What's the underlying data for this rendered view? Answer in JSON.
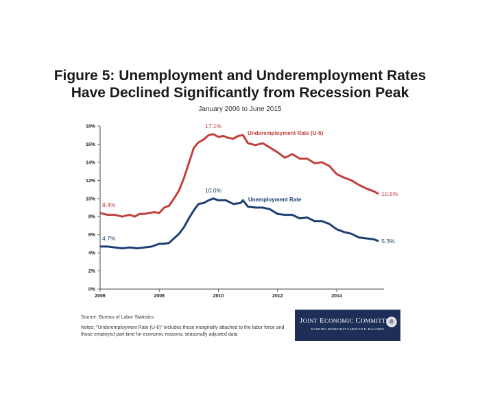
{
  "header": {
    "title_line1": "Figure 5: Unemployment and Underemployment Rates",
    "title_line2": "Have Declined Significantly from Recession Peak",
    "subtitle": "January 2006 to June 2015"
  },
  "footer": {
    "source": "Source: Bureau of Labor Statistics",
    "notes": "Notes: \"Underemployment Rate (U-6)\" includes those marginally attached to the labor force and those employed part time for economic reasons; seasonally adjusted data"
  },
  "logo": {
    "name": "Joint Economic Committee",
    "subtitle": "RANKING DEMOCRAT CAROLYN B. MALONEY"
  },
  "colors": {
    "u6": "#c0403a",
    "unemployment": "#1c3f73",
    "axis": "#444444",
    "logo_bg": "#1d2f57"
  },
  "chart_data": {
    "type": "line",
    "xlim": [
      2006,
      2015.6
    ],
    "ylim": [
      0,
      18
    ],
    "x_ticks": [
      2006,
      2008,
      2010,
      2012,
      2014
    ],
    "x_tick_labels": [
      "2006",
      "2008",
      "2010",
      "2012",
      "2014"
    ],
    "y_ticks": [
      0,
      2,
      4,
      6,
      8,
      10,
      12,
      14,
      16,
      18
    ],
    "y_tick_labels": [
      "0%",
      "2%",
      "4%",
      "6%",
      "8%",
      "10%",
      "12%",
      "14%",
      "16%",
      "18%"
    ],
    "grid": false,
    "series": [
      {
        "name": "Underemployment Rate (U-6)",
        "color": "#c0403a",
        "x": [
          2006.0,
          2006.25,
          2006.5,
          2006.75,
          2007.0,
          2007.17,
          2007.33,
          2007.5,
          2007.67,
          2007.83,
          2008.0,
          2008.17,
          2008.33,
          2008.5,
          2008.67,
          2008.83,
          2009.0,
          2009.17,
          2009.33,
          2009.5,
          2009.67,
          2009.83,
          2010.0,
          2010.17,
          2010.33,
          2010.5,
          2010.67,
          2010.83,
          2011.0,
          2011.25,
          2011.5,
          2011.75,
          2012.0,
          2012.25,
          2012.5,
          2012.75,
          2013.0,
          2013.25,
          2013.5,
          2013.75,
          2014.0,
          2014.25,
          2014.5,
          2014.75,
          2015.0,
          2015.25,
          2015.42
        ],
        "y": [
          8.4,
          8.2,
          8.2,
          8.0,
          8.2,
          8.0,
          8.3,
          8.3,
          8.4,
          8.5,
          8.4,
          9.0,
          9.2,
          10.0,
          10.9,
          12.2,
          13.9,
          15.6,
          16.2,
          16.5,
          17.0,
          17.1,
          16.8,
          16.9,
          16.7,
          16.6,
          16.9,
          17.0,
          16.1,
          15.9,
          16.1,
          15.6,
          15.1,
          14.5,
          14.9,
          14.4,
          14.4,
          13.9,
          14.0,
          13.6,
          12.7,
          12.3,
          12.0,
          11.5,
          11.1,
          10.8,
          10.5
        ]
      },
      {
        "name": "Unemployment Rate",
        "color": "#1c3f73",
        "x": [
          2006.0,
          2006.25,
          2006.5,
          2006.75,
          2007.0,
          2007.25,
          2007.5,
          2007.75,
          2008.0,
          2008.17,
          2008.33,
          2008.5,
          2008.67,
          2008.83,
          2009.0,
          2009.17,
          2009.33,
          2009.5,
          2009.67,
          2009.83,
          2010.0,
          2010.25,
          2010.5,
          2010.75,
          2010.83,
          2011.0,
          2011.25,
          2011.5,
          2011.75,
          2012.0,
          2012.25,
          2012.5,
          2012.75,
          2013.0,
          2013.25,
          2013.5,
          2013.75,
          2014.0,
          2014.25,
          2014.5,
          2014.75,
          2015.0,
          2015.25,
          2015.42
        ],
        "y": [
          4.7,
          4.7,
          4.6,
          4.5,
          4.6,
          4.5,
          4.6,
          4.7,
          5.0,
          5.0,
          5.1,
          5.6,
          6.1,
          6.8,
          7.8,
          8.7,
          9.4,
          9.5,
          9.8,
          10.0,
          9.8,
          9.8,
          9.4,
          9.5,
          9.8,
          9.1,
          9.0,
          9.0,
          8.8,
          8.3,
          8.2,
          8.2,
          7.8,
          7.9,
          7.5,
          7.5,
          7.2,
          6.6,
          6.3,
          6.1,
          5.7,
          5.6,
          5.5,
          5.3
        ]
      }
    ],
    "annotations": [
      {
        "text": "8.4%",
        "series": 0,
        "at": "start"
      },
      {
        "text": "17.1%",
        "series": 0,
        "at": "peak"
      },
      {
        "text": "10.5%",
        "series": 0,
        "at": "end"
      },
      {
        "text": "4.7%",
        "series": 1,
        "at": "start"
      },
      {
        "text": "10.0%",
        "series": 1,
        "at": "peak"
      },
      {
        "text": "5.3%",
        "series": 1,
        "at": "end"
      }
    ]
  }
}
